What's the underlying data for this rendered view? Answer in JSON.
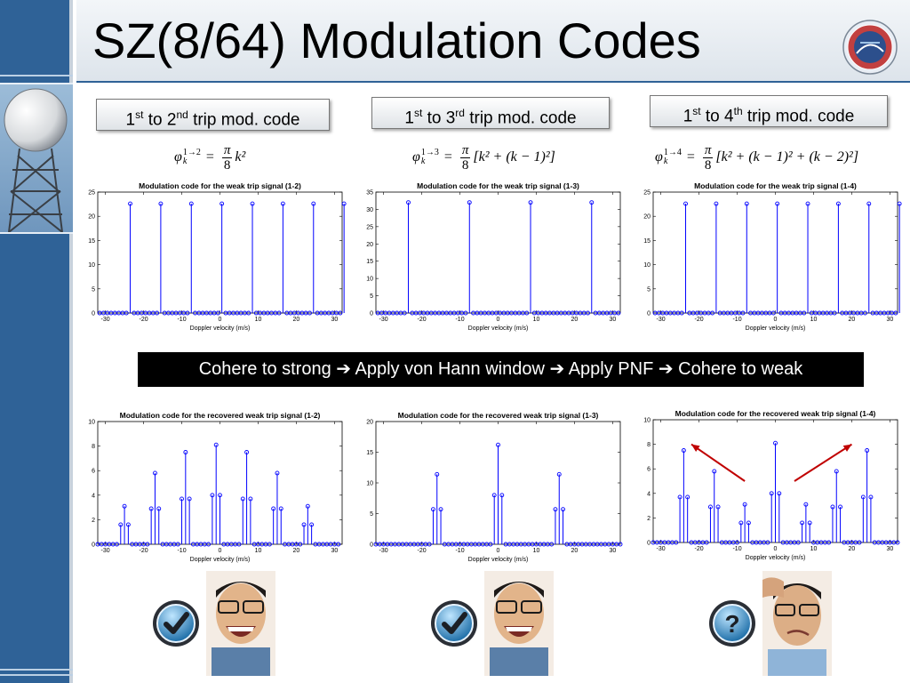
{
  "slide": {
    "title": "SZ(8/64) Modulation Codes"
  },
  "labels": [
    {
      "pre": "1",
      "sup1": "st",
      "mid": " to 2",
      "sup2": "nd",
      "post": " trip mod. code"
    },
    {
      "pre": "1",
      "sup1": "st",
      "mid": " to 3",
      "sup2": "rd",
      "post": " trip mod. code"
    },
    {
      "pre": "1",
      "sup1": "st",
      "mid": " to 4",
      "sup2": "th",
      "post": " trip mod. code"
    }
  ],
  "formulas": [
    {
      "phi": "φ",
      "sup": "1→2",
      "sub": "k",
      "eq": "=",
      "num": "π",
      "den": "8",
      "rest": "k²"
    },
    {
      "phi": "φ",
      "sup": "1→3",
      "sub": "k",
      "eq": "=",
      "num": "π",
      "den": "8",
      "rest": "[k² + (k − 1)²]"
    },
    {
      "phi": "φ",
      "sup": "1→4",
      "sub": "k",
      "eq": "=",
      "num": "π",
      "den": "8",
      "rest": "[k² + (k − 1)² + (k − 2)²]"
    }
  ],
  "banner": {
    "text": "Cohere to strong ➔ Apply von Hann window ➔ Apply PNF ➔ Cohere to weak"
  },
  "colors": {
    "stem": "#0000ff",
    "arrow": "#c00000",
    "banner_bg": "#000000",
    "sidebar": "#2f6297"
  },
  "icons": [
    "radar-tower-icon",
    "nssl-logo-icon",
    "checkmark-badge-icon",
    "question-badge-icon",
    "face-photo-icon"
  ],
  "chart_data": [
    {
      "type": "stem",
      "title": "Modulation code for the weak trip signal (1-2)",
      "xlabel": "Doppler velocity (m/s)",
      "xlim": [
        -32,
        32
      ],
      "ylim": [
        0,
        25
      ],
      "xticks": [
        -30,
        -20,
        -10,
        0,
        10,
        20,
        30
      ],
      "yticks": [
        0,
        5,
        10,
        15,
        20,
        25
      ],
      "x_start": -31.5,
      "x_step": 1,
      "values": [
        0,
        0,
        0,
        0,
        0,
        0,
        0,
        0,
        22.6,
        0,
        0,
        0,
        0,
        0,
        0,
        0,
        22.6,
        0,
        0,
        0,
        0,
        0,
        0,
        0,
        22.6,
        0,
        0,
        0,
        0,
        0,
        0,
        0,
        22.6,
        0,
        0,
        0,
        0,
        0,
        0,
        0,
        22.6,
        0,
        0,
        0,
        0,
        0,
        0,
        0,
        22.6,
        0,
        0,
        0,
        0,
        0,
        0,
        0,
        22.6,
        0,
        0,
        0,
        0,
        0,
        0,
        0,
        22.6
      ]
    },
    {
      "type": "stem",
      "title": "Modulation code for the weak trip signal (1-3)",
      "xlabel": "Doppler velocity (m/s)",
      "xlim": [
        -32,
        32
      ],
      "ylim": [
        0,
        35
      ],
      "xticks": [
        -30,
        -20,
        -10,
        0,
        10,
        20,
        30
      ],
      "yticks": [
        0,
        5,
        10,
        15,
        20,
        25,
        30,
        35
      ],
      "x_start": -31.5,
      "x_step": 1,
      "values": [
        0,
        0,
        0,
        0,
        0,
        0,
        0,
        0,
        32,
        0,
        0,
        0,
        0,
        0,
        0,
        0,
        0,
        0,
        0,
        0,
        0,
        0,
        0,
        0,
        32,
        0,
        0,
        0,
        0,
        0,
        0,
        0,
        0,
        0,
        0,
        0,
        0,
        0,
        0,
        0,
        32,
        0,
        0,
        0,
        0,
        0,
        0,
        0,
        0,
        0,
        0,
        0,
        0,
        0,
        0,
        0,
        32,
        0,
        0,
        0,
        0,
        0,
        0,
        0
      ]
    },
    {
      "type": "stem",
      "title": "Modulation code for the weak trip signal (1-4)",
      "xlabel": "Doppler velocity (m/s)",
      "xlim": [
        -32,
        32
      ],
      "ylim": [
        0,
        25
      ],
      "xticks": [
        -30,
        -20,
        -10,
        0,
        10,
        20,
        30
      ],
      "yticks": [
        0,
        5,
        10,
        15,
        20,
        25
      ],
      "x_start": -31.5,
      "x_step": 1,
      "values": [
        0,
        0,
        0,
        0,
        0,
        0,
        0,
        0,
        22.6,
        0,
        0,
        0,
        0,
        0,
        0,
        0,
        22.6,
        0,
        0,
        0,
        0,
        0,
        0,
        0,
        22.6,
        0,
        0,
        0,
        0,
        0,
        0,
        0,
        22.6,
        0,
        0,
        0,
        0,
        0,
        0,
        0,
        22.6,
        0,
        0,
        0,
        0,
        0,
        0,
        0,
        22.6,
        0,
        0,
        0,
        0,
        0,
        0,
        0,
        22.6,
        0,
        0,
        0,
        0,
        0,
        0,
        0,
        22.6
      ]
    },
    {
      "type": "stem",
      "title": "Modulation code for the recovered weak trip signal (1-2)",
      "xlabel": "Doppler velocity (m/s)",
      "xlim": [
        -32,
        32
      ],
      "ylim": [
        0,
        10
      ],
      "xticks": [
        -30,
        -20,
        -10,
        0,
        10,
        20,
        30
      ],
      "yticks": [
        0,
        2,
        4,
        6,
        8,
        10
      ],
      "x_start": -32,
      "x_step": 1,
      "values": [
        0,
        0,
        0,
        0,
        0,
        0,
        1.6,
        3.1,
        1.6,
        0,
        0,
        0,
        0,
        0,
        2.9,
        5.8,
        2.9,
        0,
        0,
        0,
        0,
        0,
        3.7,
        7.5,
        3.7,
        0,
        0,
        0,
        0,
        0,
        4.0,
        8.1,
        4.0,
        0,
        0,
        0,
        0,
        0,
        3.7,
        7.5,
        3.7,
        0,
        0,
        0,
        0,
        0,
        2.9,
        5.8,
        2.9,
        0,
        0,
        0,
        0,
        0,
        1.6,
        3.1,
        1.6,
        0,
        0,
        0,
        0,
        0,
        0,
        0
      ]
    },
    {
      "type": "stem",
      "title": "Modulation code for the recovered weak trip signal (1-3)",
      "xlabel": "Doppler velocity (m/s)",
      "xlim": [
        -32,
        32
      ],
      "ylim": [
        0,
        20
      ],
      "xticks": [
        -30,
        -20,
        -10,
        0,
        10,
        20,
        30
      ],
      "yticks": [
        0,
        5,
        10,
        15,
        20
      ],
      "x_start": -32,
      "x_step": 1,
      "values": [
        0,
        0,
        0,
        0,
        0,
        0,
        0,
        0,
        0,
        0,
        0,
        0,
        0,
        0,
        0,
        5.7,
        11.4,
        5.7,
        0,
        0,
        0,
        0,
        0,
        0,
        0,
        0,
        0,
        0,
        0,
        0,
        0,
        8.0,
        16.2,
        8.0,
        0,
        0,
        0,
        0,
        0,
        0,
        0,
        0,
        0,
        0,
        0,
        0,
        0,
        5.7,
        11.4,
        5.7,
        0,
        0,
        0,
        0,
        0,
        0,
        0,
        0,
        0,
        0,
        0,
        0,
        0,
        0,
        0
      ]
    },
    {
      "type": "stem",
      "title": "Modulation code for the recovered weak trip signal (1-4)",
      "xlabel": "Doppler velocity (m/s)",
      "xlim": [
        -32,
        32
      ],
      "ylim": [
        0,
        10
      ],
      "xticks": [
        -30,
        -20,
        -10,
        0,
        10,
        20,
        30
      ],
      "yticks": [
        0,
        2,
        4,
        6,
        8,
        10
      ],
      "x_start": -32,
      "x_step": 1,
      "values": [
        0,
        0,
        0,
        0,
        0,
        0,
        0,
        3.7,
        7.5,
        3.7,
        0,
        0,
        0,
        0,
        0,
        2.9,
        5.8,
        2.9,
        0,
        0,
        0,
        0,
        0,
        1.6,
        3.1,
        1.6,
        0,
        0,
        0,
        0,
        0,
        4.0,
        8.1,
        4.0,
        0,
        0,
        0,
        0,
        0,
        1.6,
        3.1,
        1.6,
        0,
        0,
        0,
        0,
        0,
        2.9,
        5.8,
        2.9,
        0,
        0,
        0,
        0,
        0,
        3.7,
        7.5,
        3.7,
        0,
        0,
        0,
        0,
        0,
        0,
        0
      ],
      "annotations": [
        {
          "type": "arrow",
          "from": [
            -8,
            5.0
          ],
          "to": [
            -22,
            8.0
          ]
        },
        {
          "type": "arrow",
          "from": [
            5,
            5.0
          ],
          "to": [
            20,
            8.0
          ]
        }
      ]
    }
  ]
}
